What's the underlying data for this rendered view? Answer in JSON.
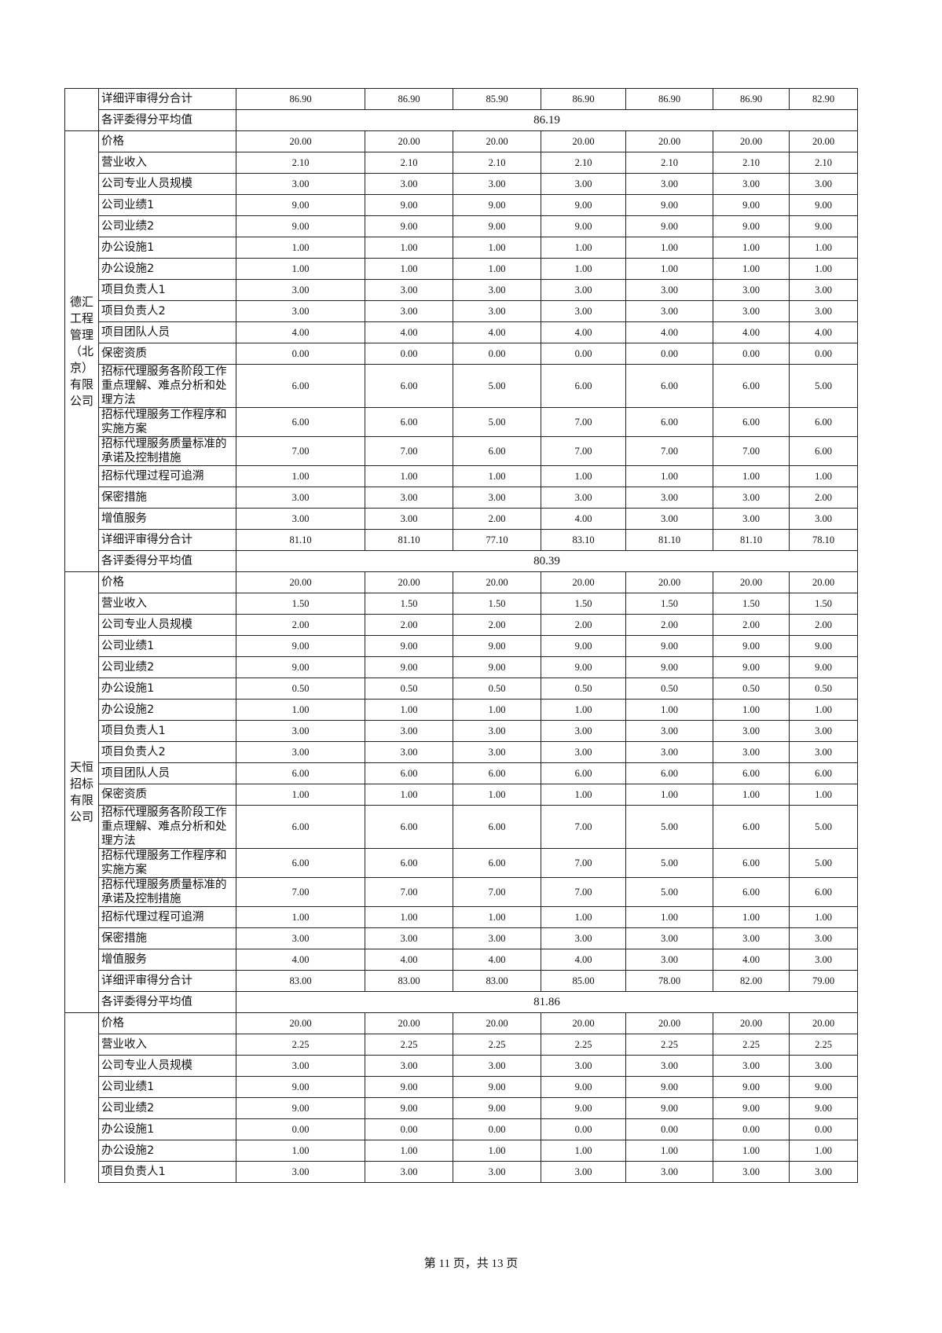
{
  "avg_label": "各评委得分平均值",
  "total_label": "详细评审得分合计",
  "sections": [
    {
      "company": "",
      "rows": [],
      "total": [
        "86.90",
        "86.90",
        "85.90",
        "86.90",
        "86.90",
        "86.90",
        "82.90"
      ],
      "average": "86.19"
    },
    {
      "company": "德汇工程管理（北京）有限公司",
      "rows": [
        {
          "label": "价格",
          "values": [
            "20.00",
            "20.00",
            "20.00",
            "20.00",
            "20.00",
            "20.00",
            "20.00"
          ]
        },
        {
          "label": "营业收入",
          "values": [
            "2.10",
            "2.10",
            "2.10",
            "2.10",
            "2.10",
            "2.10",
            "2.10"
          ]
        },
        {
          "label": "公司专业人员规模",
          "values": [
            "3.00",
            "3.00",
            "3.00",
            "3.00",
            "3.00",
            "3.00",
            "3.00"
          ]
        },
        {
          "label": "公司业绩1",
          "values": [
            "9.00",
            "9.00",
            "9.00",
            "9.00",
            "9.00",
            "9.00",
            "9.00"
          ]
        },
        {
          "label": "公司业绩2",
          "values": [
            "9.00",
            "9.00",
            "9.00",
            "9.00",
            "9.00",
            "9.00",
            "9.00"
          ]
        },
        {
          "label": "办公设施1",
          "values": [
            "1.00",
            "1.00",
            "1.00",
            "1.00",
            "1.00",
            "1.00",
            "1.00"
          ]
        },
        {
          "label": "办公设施2",
          "values": [
            "1.00",
            "1.00",
            "1.00",
            "1.00",
            "1.00",
            "1.00",
            "1.00"
          ]
        },
        {
          "label": "项目负责人1",
          "values": [
            "3.00",
            "3.00",
            "3.00",
            "3.00",
            "3.00",
            "3.00",
            "3.00"
          ]
        },
        {
          "label": "项目负责人2",
          "values": [
            "3.00",
            "3.00",
            "3.00",
            "3.00",
            "3.00",
            "3.00",
            "3.00"
          ]
        },
        {
          "label": "项目团队人员",
          "values": [
            "4.00",
            "4.00",
            "4.00",
            "4.00",
            "4.00",
            "4.00",
            "4.00"
          ]
        },
        {
          "label": "保密资质",
          "values": [
            "0.00",
            "0.00",
            "0.00",
            "0.00",
            "0.00",
            "0.00",
            "0.00"
          ]
        },
        {
          "label": "招标代理服务各阶段工作重点理解、难点分析和处理方法",
          "values": [
            "6.00",
            "6.00",
            "5.00",
            "6.00",
            "6.00",
            "6.00",
            "5.00"
          ]
        },
        {
          "label": "招标代理服务工作程序和实施方案",
          "values": [
            "6.00",
            "6.00",
            "5.00",
            "7.00",
            "6.00",
            "6.00",
            "6.00"
          ]
        },
        {
          "label": "招标代理服务质量标准的承诺及控制措施",
          "values": [
            "7.00",
            "7.00",
            "6.00",
            "7.00",
            "7.00",
            "7.00",
            "6.00"
          ]
        },
        {
          "label": "招标代理过程可追溯",
          "values": [
            "1.00",
            "1.00",
            "1.00",
            "1.00",
            "1.00",
            "1.00",
            "1.00"
          ]
        },
        {
          "label": "保密措施",
          "values": [
            "3.00",
            "3.00",
            "3.00",
            "3.00",
            "3.00",
            "3.00",
            "2.00"
          ]
        },
        {
          "label": "增值服务",
          "values": [
            "3.00",
            "3.00",
            "2.00",
            "4.00",
            "3.00",
            "3.00",
            "3.00"
          ]
        }
      ],
      "total": [
        "81.10",
        "81.10",
        "77.10",
        "83.10",
        "81.10",
        "81.10",
        "78.10"
      ],
      "average": "80.39"
    },
    {
      "company": "天恒招标有限公司",
      "rows": [
        {
          "label": "价格",
          "values": [
            "20.00",
            "20.00",
            "20.00",
            "20.00",
            "20.00",
            "20.00",
            "20.00"
          ]
        },
        {
          "label": "营业收入",
          "values": [
            "1.50",
            "1.50",
            "1.50",
            "1.50",
            "1.50",
            "1.50",
            "1.50"
          ]
        },
        {
          "label": "公司专业人员规模",
          "values": [
            "2.00",
            "2.00",
            "2.00",
            "2.00",
            "2.00",
            "2.00",
            "2.00"
          ]
        },
        {
          "label": "公司业绩1",
          "values": [
            "9.00",
            "9.00",
            "9.00",
            "9.00",
            "9.00",
            "9.00",
            "9.00"
          ]
        },
        {
          "label": "公司业绩2",
          "values": [
            "9.00",
            "9.00",
            "9.00",
            "9.00",
            "9.00",
            "9.00",
            "9.00"
          ]
        },
        {
          "label": "办公设施1",
          "values": [
            "0.50",
            "0.50",
            "0.50",
            "0.50",
            "0.50",
            "0.50",
            "0.50"
          ]
        },
        {
          "label": "办公设施2",
          "values": [
            "1.00",
            "1.00",
            "1.00",
            "1.00",
            "1.00",
            "1.00",
            "1.00"
          ]
        },
        {
          "label": "项目负责人1",
          "values": [
            "3.00",
            "3.00",
            "3.00",
            "3.00",
            "3.00",
            "3.00",
            "3.00"
          ]
        },
        {
          "label": "项目负责人2",
          "values": [
            "3.00",
            "3.00",
            "3.00",
            "3.00",
            "3.00",
            "3.00",
            "3.00"
          ]
        },
        {
          "label": "项目团队人员",
          "values": [
            "6.00",
            "6.00",
            "6.00",
            "6.00",
            "6.00",
            "6.00",
            "6.00"
          ]
        },
        {
          "label": "保密资质",
          "values": [
            "1.00",
            "1.00",
            "1.00",
            "1.00",
            "1.00",
            "1.00",
            "1.00"
          ]
        },
        {
          "label": "招标代理服务各阶段工作重点理解、难点分析和处理方法",
          "values": [
            "6.00",
            "6.00",
            "6.00",
            "7.00",
            "5.00",
            "6.00",
            "5.00"
          ]
        },
        {
          "label": "招标代理服务工作程序和实施方案",
          "values": [
            "6.00",
            "6.00",
            "6.00",
            "7.00",
            "5.00",
            "6.00",
            "5.00"
          ]
        },
        {
          "label": "招标代理服务质量标准的承诺及控制措施",
          "values": [
            "7.00",
            "7.00",
            "7.00",
            "7.00",
            "5.00",
            "6.00",
            "6.00"
          ]
        },
        {
          "label": "招标代理过程可追溯",
          "values": [
            "1.00",
            "1.00",
            "1.00",
            "1.00",
            "1.00",
            "1.00",
            "1.00"
          ]
        },
        {
          "label": "保密措施",
          "values": [
            "3.00",
            "3.00",
            "3.00",
            "3.00",
            "3.00",
            "3.00",
            "3.00"
          ]
        },
        {
          "label": "增值服务",
          "values": [
            "4.00",
            "4.00",
            "4.00",
            "4.00",
            "3.00",
            "4.00",
            "3.00"
          ]
        }
      ],
      "total": [
        "83.00",
        "83.00",
        "83.00",
        "85.00",
        "78.00",
        "82.00",
        "79.00"
      ],
      "average": "81.86"
    },
    {
      "company": "",
      "rows": [
        {
          "label": "价格",
          "values": [
            "20.00",
            "20.00",
            "20.00",
            "20.00",
            "20.00",
            "20.00",
            "20.00"
          ]
        },
        {
          "label": "营业收入",
          "values": [
            "2.25",
            "2.25",
            "2.25",
            "2.25",
            "2.25",
            "2.25",
            "2.25"
          ]
        },
        {
          "label": "公司专业人员规模",
          "values": [
            "3.00",
            "3.00",
            "3.00",
            "3.00",
            "3.00",
            "3.00",
            "3.00"
          ]
        },
        {
          "label": "公司业绩1",
          "values": [
            "9.00",
            "9.00",
            "9.00",
            "9.00",
            "9.00",
            "9.00",
            "9.00"
          ]
        },
        {
          "label": "公司业绩2",
          "values": [
            "9.00",
            "9.00",
            "9.00",
            "9.00",
            "9.00",
            "9.00",
            "9.00"
          ]
        },
        {
          "label": "办公设施1",
          "values": [
            "0.00",
            "0.00",
            "0.00",
            "0.00",
            "0.00",
            "0.00",
            "0.00"
          ]
        },
        {
          "label": "办公设施2",
          "values": [
            "1.00",
            "1.00",
            "1.00",
            "1.00",
            "1.00",
            "1.00",
            "1.00"
          ]
        },
        {
          "label": "项目负责人1",
          "values": [
            "3.00",
            "3.00",
            "3.00",
            "3.00",
            "3.00",
            "3.00",
            "3.00"
          ]
        }
      ]
    }
  ],
  "footer": {
    "page_text": "第 11 页，共 13 页"
  }
}
